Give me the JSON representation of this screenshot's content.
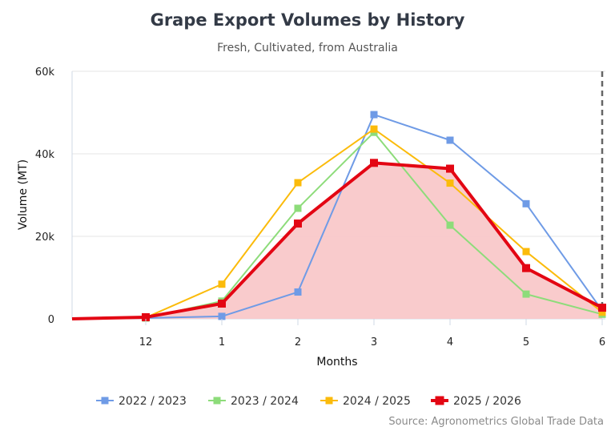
{
  "chart_data": {
    "type": "line",
    "title": "Grape Export Volumes by History",
    "subtitle": "Fresh, Cultivated, from Australia",
    "xlabel": "Months",
    "ylabel": "Volume (MT)",
    "source": "Source: Agronometrics Global Trade Data",
    "categories": [
      "12",
      "1",
      "2",
      "3",
      "4",
      "5",
      "6"
    ],
    "y_ticks": [
      {
        "value": 0,
        "label": "0"
      },
      {
        "value": 20000,
        "label": "20k"
      },
      {
        "value": 40000,
        "label": "40k"
      },
      {
        "value": 60000,
        "label": "60k"
      }
    ],
    "ylim": [
      0,
      60000
    ],
    "grid": true,
    "legend_position": "bottom",
    "series": [
      {
        "name": "2022 / 2023",
        "color": "#6f9be6",
        "width": 2,
        "x": [
          -1,
          0,
          1,
          2,
          3,
          4,
          5,
          6
        ],
        "values": [
          0,
          200,
          600,
          6500,
          49500,
          43300,
          27900,
          2000
        ]
      },
      {
        "name": "2023 / 2024",
        "color": "#8ddc7a",
        "width": 2,
        "x": [
          0,
          1,
          2,
          3,
          4,
          5,
          6
        ],
        "values": [
          200,
          4300,
          26800,
          45200,
          22700,
          6000,
          1100
        ]
      },
      {
        "name": "2024 / 2025",
        "color": "#fbbb0b",
        "width": 2,
        "x": [
          0,
          1,
          2,
          3,
          4,
          5,
          6
        ],
        "values": [
          300,
          8400,
          33000,
          46000,
          32900,
          16300,
          1600
        ]
      },
      {
        "name": "2025 / 2026",
        "color": "#e30613",
        "width": 4,
        "area_fill": "#f9c8c9",
        "x": [
          -1,
          0,
          1,
          2,
          3,
          4,
          5,
          6
        ],
        "values": [
          0,
          400,
          3700,
          23100,
          37800,
          36400,
          12300,
          2700
        ]
      }
    ],
    "current_marker_x": 6
  }
}
